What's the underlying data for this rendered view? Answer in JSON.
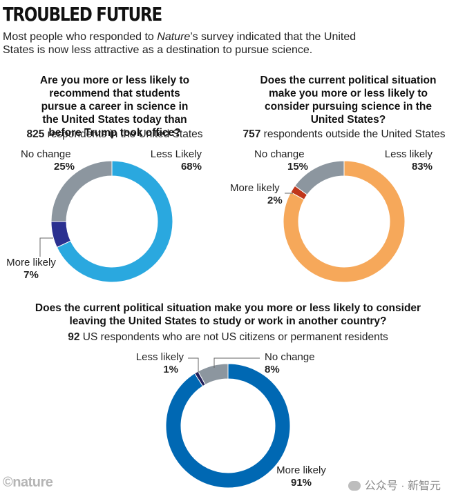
{
  "header": {
    "title": "TROUBLED FUTURE",
    "subtitle_pre": "Most people who responded to ",
    "subtitle_em": "Nature",
    "subtitle_post": "’s survey indicated that the United States is now less attractive as a destination to pursue science."
  },
  "colors": {
    "light_blue": "#2aa8df",
    "navy": "#2b3090",
    "gray": "#8c969f",
    "orange": "#f6a85a",
    "red": "#c0361b",
    "blue": "#0068b3",
    "dark_navy": "#22205a"
  },
  "chart_data": [
    {
      "type": "pie",
      "donut": true,
      "question": "Are you more or less likely to recommend that students pursue a career in science in the United States today than before Trump took office?",
      "respondents_count": "825",
      "respondents_text": " respondents in the United States",
      "slices": [
        {
          "name": "Less Likely",
          "value": 68,
          "label": "68%",
          "color": "#2aa8df"
        },
        {
          "name": "More likely",
          "value": 7,
          "label": "7%",
          "color": "#2b3090"
        },
        {
          "name": "No change",
          "value": 25,
          "label": "25%",
          "color": "#8c969f"
        }
      ]
    },
    {
      "type": "pie",
      "donut": true,
      "question": "Does the current political situation make you more or less likely to consider pursuing science in the United States?",
      "respondents_count": "757",
      "respondents_text": " respondents outside the United States",
      "slices": [
        {
          "name": "Less likely",
          "value": 83,
          "label": "83%",
          "color": "#f6a85a"
        },
        {
          "name": "More likely",
          "value": 2,
          "label": "2%",
          "color": "#c0361b"
        },
        {
          "name": "No change",
          "value": 15,
          "label": "15%",
          "color": "#8c969f"
        }
      ]
    },
    {
      "type": "pie",
      "donut": true,
      "question": "Does the current political situation make you more or less likely to consider leaving the United States to study or work in another country?",
      "respondents_count": "92",
      "respondents_text": " US respondents who are not US citizens or permanent residents",
      "slices": [
        {
          "name": "More likely",
          "value": 91,
          "label": "91%",
          "color": "#0068b3"
        },
        {
          "name": "Less likely",
          "value": 1,
          "label": "1%",
          "color": "#22205a"
        },
        {
          "name": "No change",
          "value": 8,
          "label": "8%",
          "color": "#8c969f"
        }
      ]
    }
  ],
  "footer": {
    "logo": "©nature",
    "watermark": "公众号 · 新智元"
  }
}
